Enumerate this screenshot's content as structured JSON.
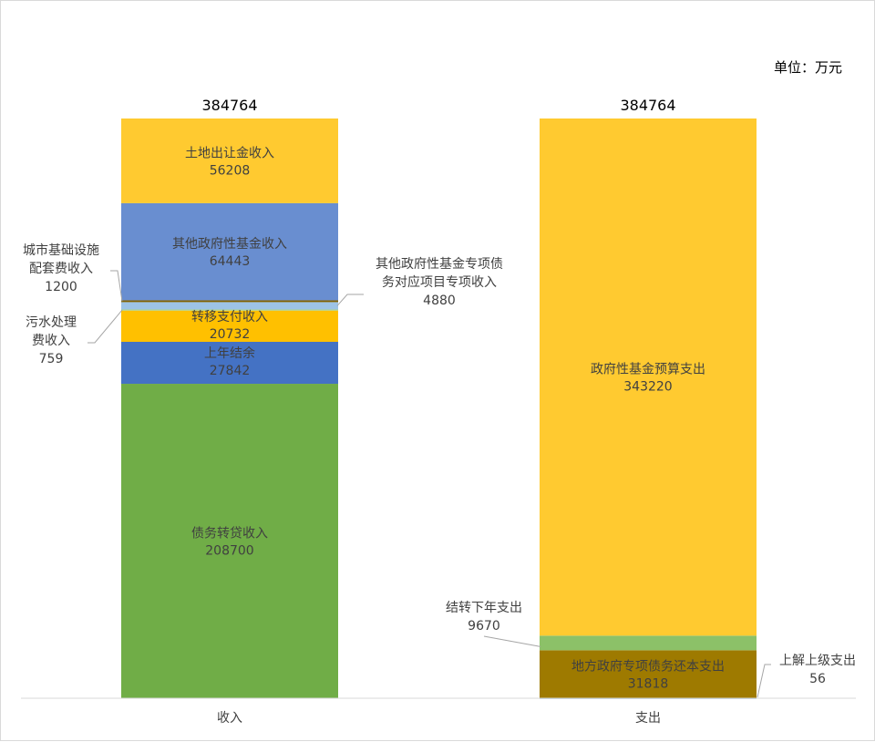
{
  "chart_data": {
    "type": "bar",
    "stacked": true,
    "unit_label": "单位：万元",
    "categories": [
      "收入",
      "支出"
    ],
    "totals": [
      384764,
      384764
    ],
    "series": [
      {
        "name": "债务转贷收入",
        "stack": "收入",
        "value": 208700,
        "color": "#70AD47",
        "label": "债务转贷收入",
        "value_label": "208700"
      },
      {
        "name": "上年结余",
        "stack": "收入",
        "value": 27842,
        "color": "#4472C4",
        "label": "上年结余",
        "value_label": "27842"
      },
      {
        "name": "转移支付收入",
        "stack": "收入",
        "value": 20732,
        "color": "#FFC000",
        "label": "转移支付收入",
        "value_label": "20732"
      },
      {
        "name": "污水处理费收入",
        "stack": "收入",
        "value": 759,
        "color": "#A9D18E",
        "label": "污水处理费收入",
        "value_label": "759"
      },
      {
        "name": "其他政府性基金专项债务对应项目专项收入",
        "stack": "收入",
        "value": 4880,
        "color": "#9DC3E6",
        "label": "其他政府性基金专项债务对应项目专项收入",
        "value_label": "4880"
      },
      {
        "name": "城市基础设施配套费收入",
        "stack": "收入",
        "value": 1200,
        "color": "#7F6000",
        "label": "城市基础设施配套费收入",
        "value_label": "1200"
      },
      {
        "name": "其他政府性基金收入",
        "stack": "收入",
        "value": 64443,
        "color": "#698ED0",
        "label": "其他政府性基金收入",
        "value_label": "64443"
      },
      {
        "name": "土地出让金收入",
        "stack": "收入",
        "value": 56208,
        "color": "#FFCA30",
        "label": "土地出让金收入",
        "value_label": "56208"
      },
      {
        "name": "上解上级支出",
        "stack": "支出",
        "value": 56,
        "color": "#5B9BD5",
        "label": "上解上级支出",
        "value_label": "56"
      },
      {
        "name": "地方政府专项债务还本支出",
        "stack": "支出",
        "value": 31818,
        "color": "#9E7A00",
        "label": "地方政府专项债务还本支出",
        "value_label": "31818"
      },
      {
        "name": "结转下年支出",
        "stack": "支出",
        "value": 9670,
        "color": "#8CC168",
        "label": "结转下年支出",
        "value_label": "9670"
      },
      {
        "name": "政府性基金预算支出",
        "stack": "支出",
        "value": 343220,
        "color": "#FFCA30",
        "label": "政府性基金预算支出",
        "value_label": "343220"
      }
    ],
    "inline_labels": {
      "债务转贷收入": [
        "债务转贷收入",
        "208700"
      ],
      "上年结余": [
        "上年结余",
        "27842"
      ],
      "转移支付收入": [
        "转移支付收入",
        "20732"
      ],
      "其他政府性基金收入": [
        "其他政府性基金收入",
        "64443"
      ],
      "土地出让金收入": [
        "土地出让金收入",
        "56208"
      ],
      "地方政府专项债务还本支出": [
        "地方政府专项债务还本支出",
        "31818"
      ],
      "政府性基金预算支出": [
        "政府性基金预算支出",
        "343220"
      ]
    },
    "callouts": {
      "城市基础设施配套费收入": [
        "城市基础设施",
        "配套费收入",
        "1200"
      ],
      "污水处理费收入": [
        "污水处理",
        "费收入",
        "759"
      ],
      "其他政府性基金专项债务对应项目专项收入": [
        "其他政府性基金专项债",
        "务对应项目专项收入",
        "4880"
      ],
      "结转下年支出": [
        "结转下年支出",
        "9670"
      ],
      "上解上级支出": [
        "上解上级支出",
        "56"
      ]
    },
    "ylim": [
      0,
      384764
    ],
    "grid": false,
    "legend": "none"
  }
}
